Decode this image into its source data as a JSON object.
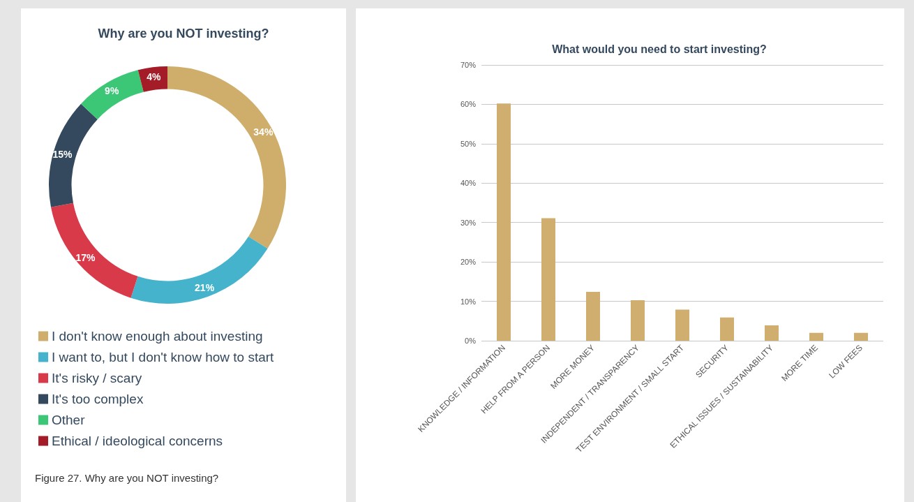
{
  "chart_data": [
    {
      "type": "donut",
      "title": "Why are you NOT investing?",
      "categories": [
        "I don't know enough about investing",
        "I want to, but I don't know how to start",
        "It's risky / scary",
        "It's too complex",
        "Other",
        "Ethical / ideological concerns"
      ],
      "values": [
        34,
        21,
        17,
        15,
        9,
        4
      ],
      "value_labels": [
        "34%",
        "21%",
        "17%",
        "15%",
        "9%",
        "4%"
      ],
      "colors": [
        "#cfae6b",
        "#45b3cc",
        "#d83a4a",
        "#34495e",
        "#3cc776",
        "#a31c28"
      ],
      "legend": "bottom",
      "annotations": [
        "Figure 27. Why are you NOT investing?"
      ]
    },
    {
      "type": "bar",
      "title": "What would you need to start investing?",
      "categories": [
        "KNOWLEDGE / INFORMATION",
        "HELP FROM A PERSON",
        "MORE MONEY",
        "INDEPENDENT / TRANSPARENCY",
        "TEST ENVIRONMENT / SMALL START",
        "SECURITY",
        "ETHICAL ISSUES / SUSTAINABILITY",
        "MORE TIME",
        "LOW FEES"
      ],
      "values": [
        60.2,
        31.1,
        12.4,
        10.3,
        7.9,
        5.9,
        3.9,
        2.0,
        2.0
      ],
      "color": "#cfae70",
      "ylim": [
        0,
        70
      ],
      "yticks": [
        {
          "value": 0,
          "label": "0%"
        },
        {
          "value": 10,
          "label": "10%"
        },
        {
          "value": 20,
          "label": "20%"
        },
        {
          "value": 30,
          "label": "30%"
        },
        {
          "value": 40,
          "label": "40%"
        },
        {
          "value": 50,
          "label": "50%"
        },
        {
          "value": 60,
          "label": "60%"
        },
        {
          "value": 70,
          "label": "70%"
        }
      ],
      "grid": "y",
      "legend": false
    }
  ]
}
